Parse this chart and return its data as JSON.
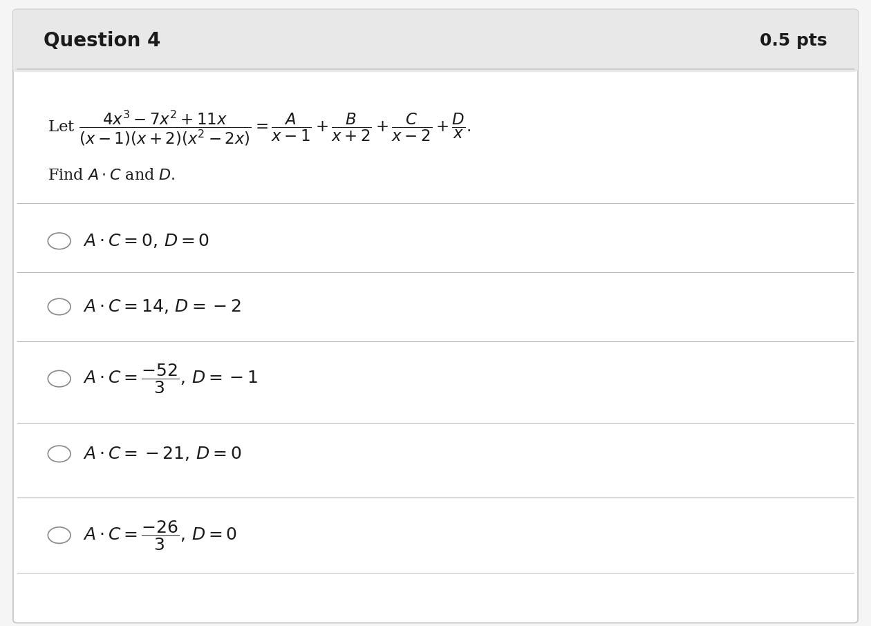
{
  "title": "Question 4",
  "pts": "0.5 pts",
  "bg_color": "#f5f5f5",
  "card_bg": "#ffffff",
  "header_bg": "#e8e8e8",
  "border_color": "#cccccc",
  "text_color": "#1a1a1a",
  "question_latex": "\\text{Let } \\frac{4x^3 - 7x^2 + 11x}{(x-1)(x+2)(x^2-2x)} = \\frac{A}{x-1} + \\frac{B}{x+2} + \\frac{C}{x-2} + \\frac{D}{x}.",
  "find_text": "\\text{Find } A \\cdot C \\text{ and } D.",
  "options": [
    "A \\cdot C = 0,\\, D = 0",
    "A \\cdot C = 14,\\, D = -2",
    "A \\cdot C = \\dfrac{-52}{3},\\, D = -1",
    "A \\cdot C = -21,\\, D = 0",
    "A \\cdot C = \\dfrac{-26}{3},\\, D = 0"
  ],
  "option_fontsize": 18,
  "title_fontsize": 20,
  "pts_fontsize": 18,
  "question_fontsize": 17,
  "divider_color": "#bbbbbb"
}
